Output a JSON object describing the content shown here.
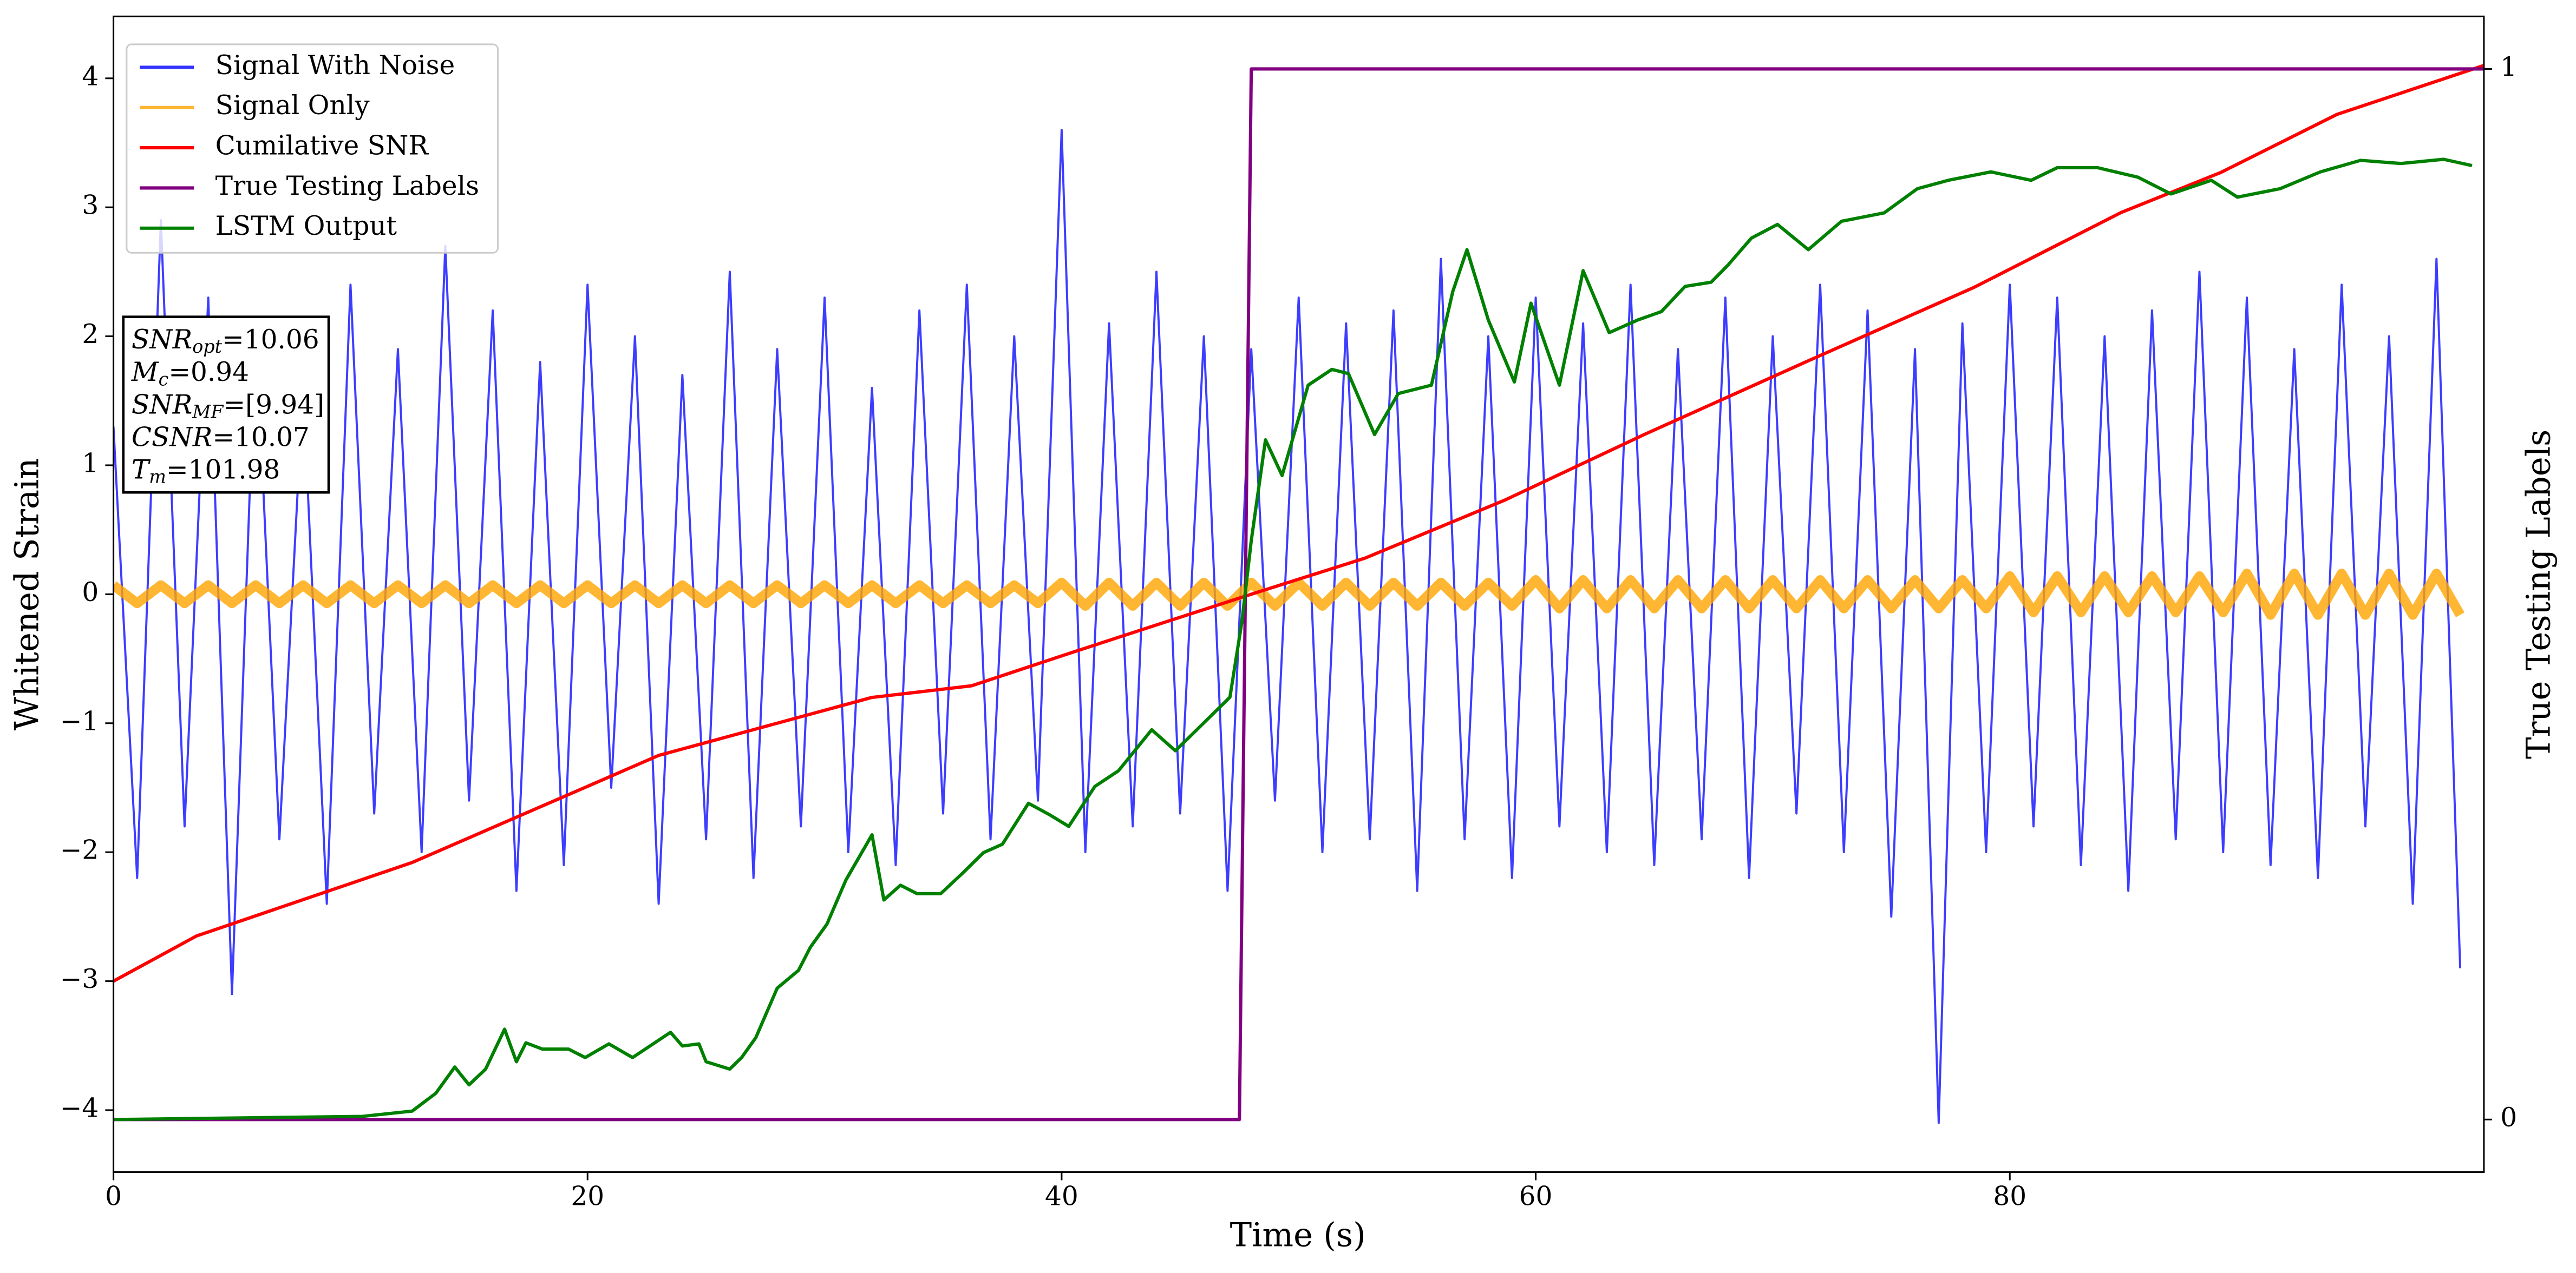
{
  "chart_data": {
    "type": "line",
    "xlabel": "Time (s)",
    "ylabel": "Whitened Strain",
    "y2label": "True Testing Labels",
    "xlim": [
      0,
      100
    ],
    "ylim": [
      -4.48,
      4.48
    ],
    "y2lim": [
      -0.05,
      1.05
    ],
    "xticks": [
      0,
      20,
      40,
      60,
      80
    ],
    "yticks": [
      {
        "value": -4,
        "label": "−4"
      },
      {
        "value": -3,
        "label": "−3"
      },
      {
        "value": -2,
        "label": "−2"
      },
      {
        "value": -1,
        "label": "−1"
      },
      0,
      1,
      2,
      3,
      4
    ],
    "y2ticks": [
      0,
      1
    ],
    "legend": "upper left",
    "x": [
      0,
      1,
      2,
      3,
      4,
      5,
      6,
      7,
      8,
      9,
      10,
      11,
      12,
      13,
      14,
      15,
      16,
      17,
      18,
      19,
      20,
      21,
      22,
      23,
      24,
      25,
      26,
      27,
      28,
      29,
      30,
      31,
      32,
      33,
      34,
      35,
      36,
      37,
      38,
      39,
      40,
      41,
      42,
      43,
      44,
      45,
      46,
      47,
      48,
      49,
      50,
      51,
      52,
      53,
      54,
      55,
      56,
      57,
      58,
      59,
      60,
      61,
      62,
      63,
      64,
      65,
      66,
      67,
      68,
      69,
      70,
      71,
      72,
      73,
      74,
      75,
      76,
      77,
      78,
      79,
      80,
      81,
      82,
      83,
      84,
      85,
      86,
      87,
      88,
      89,
      90,
      91,
      92,
      93,
      94,
      95,
      96,
      97,
      98,
      99
    ],
    "series": [
      {
        "name": "Signal With Noise",
        "color": "#3333ff",
        "axis": "y",
        "values": [
          1.3,
          -2.2,
          2.9,
          -1.8,
          2.3,
          -3.1,
          2.1,
          -1.9,
          1.6,
          -2.4,
          2.4,
          -1.7,
          1.9,
          -2.0,
          2.7,
          -1.6,
          2.2,
          -2.3,
          1.8,
          -2.1,
          2.4,
          -1.5,
          2.0,
          -2.4,
          1.7,
          -1.9,
          2.5,
          -2.2,
          1.9,
          -1.8,
          2.3,
          -2.0,
          1.6,
          -2.1,
          2.2,
          -1.7,
          2.4,
          -1.9,
          2.0,
          -1.6,
          3.6,
          -2.0,
          2.1,
          -1.8,
          2.5,
          -1.7,
          2.0,
          -2.3,
          1.9,
          -1.6,
          2.3,
          -2.0,
          2.1,
          -1.9,
          2.2,
          -2.3,
          2.6,
          -1.9,
          2.0,
          -2.2,
          2.3,
          -1.8,
          2.1,
          -2.0,
          2.4,
          -2.1,
          1.9,
          -1.9,
          2.3,
          -2.2,
          2.0,
          -1.7,
          2.4,
          -2.0,
          2.2,
          -2.5,
          1.9,
          -4.1,
          2.1,
          -2.0,
          2.4,
          -1.8,
          2.3,
          -2.1,
          2.0,
          -2.3,
          2.2,
          -1.9,
          2.5,
          -2.0,
          2.3,
          -2.1,
          1.9,
          -2.2,
          2.4,
          -1.8,
          2.0,
          -2.4,
          2.6,
          -2.9
        ]
      },
      {
        "name": "Signal Only",
        "color": "#ffa500",
        "axis": "y",
        "values": [
          0.07,
          -0.07,
          0.07,
          -0.07,
          0.07,
          -0.07,
          0.07,
          -0.07,
          0.07,
          -0.07,
          0.07,
          -0.07,
          0.07,
          -0.07,
          0.07,
          -0.07,
          0.07,
          -0.07,
          0.07,
          -0.07,
          0.07,
          -0.07,
          0.07,
          -0.07,
          0.07,
          -0.07,
          0.07,
          -0.07,
          0.07,
          -0.07,
          0.07,
          -0.07,
          0.07,
          -0.07,
          0.07,
          -0.07,
          0.07,
          -0.07,
          0.07,
          -0.07,
          0.09,
          -0.09,
          0.09,
          -0.09,
          0.09,
          -0.09,
          0.09,
          -0.09,
          0.09,
          -0.09,
          0.09,
          -0.09,
          0.09,
          -0.09,
          0.09,
          -0.09,
          0.09,
          -0.09,
          0.09,
          -0.09,
          0.11,
          -0.11,
          0.11,
          -0.11,
          0.11,
          -0.11,
          0.11,
          -0.11,
          0.11,
          -0.11,
          0.11,
          -0.11,
          0.11,
          -0.11,
          0.11,
          -0.11,
          0.11,
          -0.11,
          0.11,
          -0.11,
          0.14,
          -0.14,
          0.14,
          -0.14,
          0.14,
          -0.14,
          0.14,
          -0.14,
          0.14,
          -0.14,
          0.16,
          -0.16,
          0.16,
          -0.16,
          0.16,
          -0.16,
          0.16,
          -0.16,
          0.16,
          -0.16
        ]
      },
      {
        "name": "Cumilative SNR",
        "color": "#ff0000",
        "axis": "y",
        "x": [
          0,
          3.5,
          12.6,
          23,
          32,
          36.2,
          40.3,
          43.8,
          48,
          52.8,
          58.7,
          64.6,
          71.5,
          78.5,
          84.7,
          88.9,
          93.8,
          100
        ],
        "values": [
          -3,
          -2.65,
          -2.08,
          -1.25,
          -0.8,
          -0.71,
          -0.46,
          -0.25,
          0,
          0.28,
          0.73,
          1.24,
          1.81,
          2.38,
          2.96,
          3.27,
          3.72,
          4.1
        ]
      },
      {
        "name": "True Testing Labels",
        "color": "#800080",
        "axis": "y2",
        "x": [
          0,
          47.5,
          48,
          100
        ],
        "values": [
          0,
          0,
          1,
          1
        ]
      },
      {
        "name": "LSTM Output",
        "color": "#008000",
        "axis": "y2",
        "x": [
          0,
          10.5,
          12.6,
          13.6,
          14.4,
          15,
          15.7,
          16.5,
          17,
          17.4,
          18.1,
          19.2,
          19.9,
          20.9,
          21.9,
          23.5,
          24,
          24.7,
          25,
          26,
          26.5,
          27.1,
          28,
          28.9,
          29.4,
          30.1,
          30.9,
          32,
          32.5,
          33.2,
          33.9,
          34.9,
          35.8,
          36.7,
          37.5,
          38.6,
          39.5,
          40.3,
          41.4,
          42.4,
          43.8,
          44.8,
          46.2,
          47.1,
          47.6,
          48,
          48.6,
          49.3,
          50.4,
          51.4,
          52.1,
          53.2,
          54.2,
          55.6,
          56.5,
          57.1,
          58,
          59.1,
          59.8,
          61,
          62,
          63.1,
          64.3,
          65.3,
          66.3,
          67.4,
          68.1,
          69.1,
          70.2,
          71.5,
          72.9,
          74.7,
          76.1,
          77.4,
          79.2,
          80.9,
          82,
          83.7,
          85.4,
          86.8,
          88.5,
          89.6,
          91.4,
          93.1,
          94.8,
          96.5,
          98.3,
          99.5
        ],
        "values": [
          0,
          0.003,
          0.008,
          0.025,
          0.05,
          0.033,
          0.048,
          0.086,
          0.055,
          0.073,
          0.067,
          0.067,
          0.059,
          0.072,
          0.059,
          0.083,
          0.07,
          0.072,
          0.055,
          0.048,
          0.059,
          0.078,
          0.125,
          0.142,
          0.164,
          0.186,
          0.228,
          0.271,
          0.209,
          0.223,
          0.215,
          0.215,
          0.234,
          0.254,
          0.262,
          0.301,
          0.29,
          0.279,
          0.317,
          0.332,
          0.371,
          0.351,
          0.382,
          0.402,
          0.473,
          0.551,
          0.647,
          0.613,
          0.699,
          0.714,
          0.71,
          0.652,
          0.691,
          0.699,
          0.788,
          0.828,
          0.761,
          0.702,
          0.777,
          0.699,
          0.808,
          0.749,
          0.761,
          0.769,
          0.793,
          0.797,
          0.813,
          0.839,
          0.852,
          0.828,
          0.855,
          0.863,
          0.886,
          0.894,
          0.902,
          0.894,
          0.906,
          0.906,
          0.897,
          0.881,
          0.894,
          0.878,
          0.886,
          0.902,
          0.913,
          0.91,
          0.914,
          0.908
        ]
      }
    ],
    "annotations": [
      {
        "text": "SNR",
        "sub": "opt",
        "rest": "=10.06"
      },
      {
        "text": "M",
        "sub": "c",
        "rest": "=0.94"
      },
      {
        "text": "SNR",
        "sub": "MF",
        "rest": "=[9.94]"
      },
      {
        "text": "CSNR",
        "rest": "=10.07"
      },
      {
        "text": "T",
        "sub": "m",
        "rest": "=101.98"
      }
    ]
  }
}
